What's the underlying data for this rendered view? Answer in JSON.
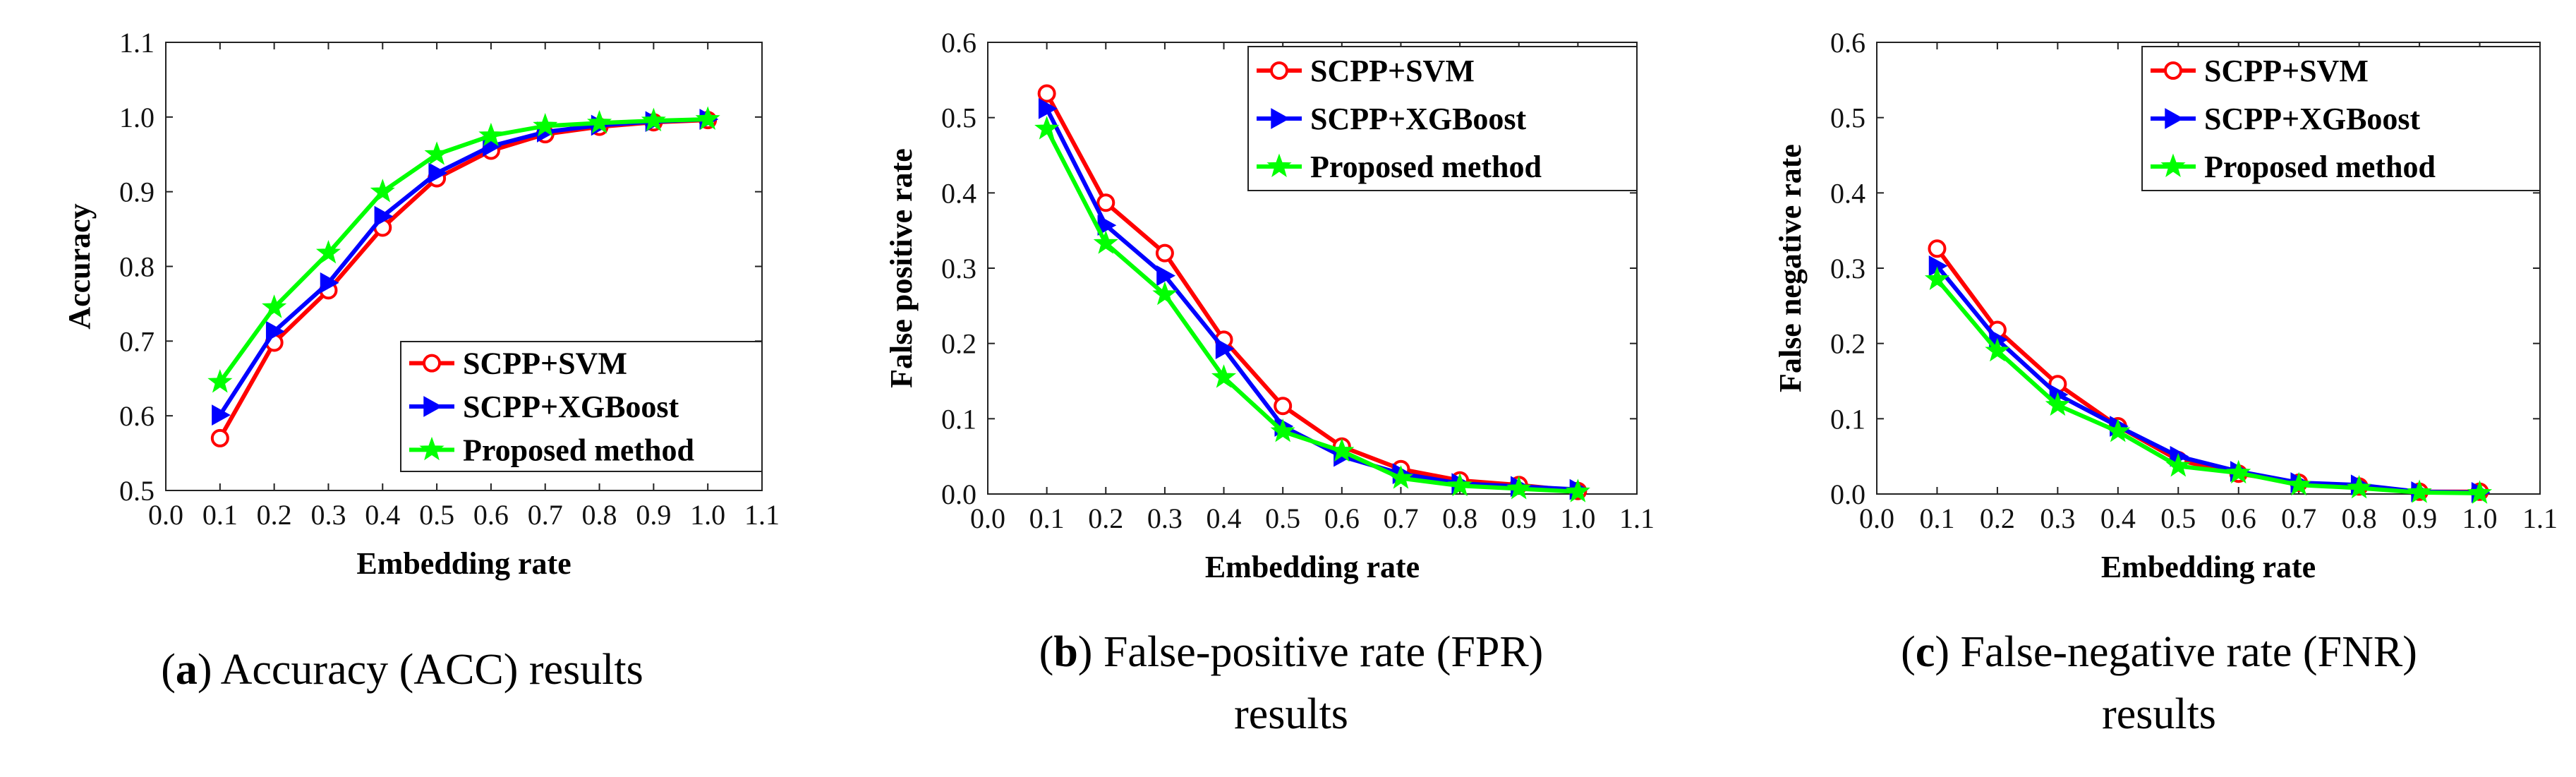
{
  "figure": {
    "captions": [
      {
        "letter": "a",
        "line1": "Accuracy (ACC) results",
        "line2": ""
      },
      {
        "letter": "b",
        "line1": "False-positive rate (FPR)",
        "line2": "results"
      },
      {
        "letter": "c",
        "line1": "False-negative rate (FNR)",
        "line2": "results"
      }
    ]
  },
  "colors": {
    "svm": "#ff0000",
    "xgb": "#0000ff",
    "proposed": "#00ff00"
  },
  "chart_data": [
    {
      "type": "line",
      "xlabel": "Embedding rate",
      "ylabel": "Accuracy",
      "xlim": [
        0.0,
        1.1
      ],
      "ylim": [
        0.5,
        1.1
      ],
      "xticks": [
        "0.0",
        "0.1",
        "0.2",
        "0.3",
        "0.4",
        "0.5",
        "0.6",
        "0.7",
        "0.8",
        "0.9",
        "1.0",
        "1.1"
      ],
      "yticks": [
        "0.5",
        "0.6",
        "0.7",
        "0.8",
        "0.9",
        "1.0",
        "1.1"
      ],
      "legend_position": "bottom-right",
      "x": [
        0.1,
        0.2,
        0.3,
        0.4,
        0.5,
        0.6,
        0.7,
        0.8,
        0.9,
        1.0
      ],
      "series": [
        {
          "name": "SCPP+SVM",
          "marker": "circle",
          "values": [
            0.57,
            0.698,
            0.768,
            0.852,
            0.918,
            0.955,
            0.977,
            0.987,
            0.993,
            0.996
          ]
        },
        {
          "name": "SCPP+XGBoost",
          "marker": "triangle-right",
          "values": [
            0.601,
            0.713,
            0.778,
            0.867,
            0.925,
            0.961,
            0.98,
            0.989,
            0.994,
            0.997
          ]
        },
        {
          "name": "Proposed method",
          "marker": "star",
          "values": [
            0.645,
            0.745,
            0.818,
            0.9,
            0.95,
            0.975,
            0.988,
            0.992,
            0.995,
            0.997
          ]
        }
      ]
    },
    {
      "type": "line",
      "xlabel": "Embedding rate",
      "ylabel": "False positive rate",
      "xlim": [
        0.0,
        1.1
      ],
      "ylim": [
        0.0,
        0.6
      ],
      "xticks": [
        "0.0",
        "0.1",
        "0.2",
        "0.3",
        "0.4",
        "0.5",
        "0.6",
        "0.7",
        "0.8",
        "0.9",
        "1.0",
        "1.1"
      ],
      "yticks": [
        "0.0",
        "0.1",
        "0.2",
        "0.3",
        "0.4",
        "0.5",
        "0.6"
      ],
      "legend_position": "top-right",
      "x": [
        0.1,
        0.2,
        0.3,
        0.4,
        0.5,
        0.6,
        0.7,
        0.8,
        0.9,
        1.0
      ],
      "series": [
        {
          "name": "SCPP+SVM",
          "marker": "circle",
          "values": [
            0.532,
            0.387,
            0.32,
            0.205,
            0.117,
            0.063,
            0.033,
            0.018,
            0.012,
            0.004
          ]
        },
        {
          "name": "SCPP+XGBoost",
          "marker": "triangle-right",
          "values": [
            0.512,
            0.357,
            0.29,
            0.193,
            0.09,
            0.05,
            0.027,
            0.014,
            0.01,
            0.006
          ]
        },
        {
          "name": "Proposed method",
          "marker": "star",
          "values": [
            0.485,
            0.333,
            0.265,
            0.155,
            0.083,
            0.057,
            0.021,
            0.011,
            0.007,
            0.003
          ]
        }
      ]
    },
    {
      "type": "line",
      "xlabel": "Embedding rate",
      "ylabel": "False negative rate",
      "xlim": [
        0.0,
        1.1
      ],
      "ylim": [
        0.0,
        0.6
      ],
      "xticks": [
        "0.0",
        "0.1",
        "0.2",
        "0.3",
        "0.4",
        "0.5",
        "0.6",
        "0.7",
        "0.8",
        "0.9",
        "1.0",
        "1.1"
      ],
      "yticks": [
        "0.0",
        "0.1",
        "0.2",
        "0.3",
        "0.4",
        "0.5",
        "0.6"
      ],
      "legend_position": "top-right",
      "x": [
        0.1,
        0.2,
        0.3,
        0.4,
        0.5,
        0.6,
        0.7,
        0.8,
        0.9,
        1.0
      ],
      "series": [
        {
          "name": "SCPP+SVM",
          "marker": "circle",
          "values": [
            0.326,
            0.218,
            0.146,
            0.09,
            0.045,
            0.027,
            0.015,
            0.01,
            0.003,
            0.003
          ]
        },
        {
          "name": "SCPP+XGBoost",
          "marker": "triangle-right",
          "values": [
            0.303,
            0.205,
            0.132,
            0.09,
            0.05,
            0.03,
            0.015,
            0.012,
            0.003,
            0.002
          ]
        },
        {
          "name": "Proposed method",
          "marker": "star",
          "values": [
            0.285,
            0.19,
            0.118,
            0.083,
            0.037,
            0.028,
            0.012,
            0.008,
            0.002,
            0.001
          ]
        }
      ]
    }
  ]
}
